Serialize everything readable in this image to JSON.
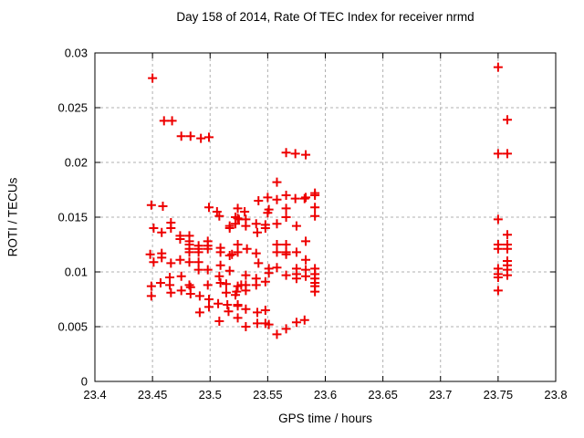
{
  "title": "Day 158 of 2014, Rate Of TEC Index for receiver nrmd",
  "colors": {
    "marker": "#ee0000",
    "grid": "#b0b0b0",
    "border": "#000000",
    "text": "#000000",
    "background": "#ffffff"
  },
  "chart_data": {
    "type": "scatter",
    "title": "Day 158 of 2014, Rate Of TEC Index for receiver nrmd",
    "xlabel": "GPS time / hours",
    "ylabel": "ROTI / TECUs",
    "xlim": [
      23.4,
      23.8
    ],
    "ylim": [
      0,
      0.03
    ],
    "x_ticks": [
      23.4,
      23.45,
      23.5,
      23.55,
      23.6,
      23.65,
      23.7,
      23.75,
      23.8
    ],
    "x_tick_labels": [
      "23.4",
      "23.45",
      "23.5",
      "23.55",
      "23.6",
      "23.65",
      "23.7",
      "23.75",
      "23.8"
    ],
    "y_ticks": [
      0,
      0.005,
      0.01,
      0.015,
      0.02,
      0.025,
      0.03
    ],
    "y_tick_labels": [
      "0",
      "0.005",
      "0.01",
      "0.015",
      "0.02",
      "0.025",
      "0.03"
    ],
    "grid": true,
    "legend": "none",
    "marker_shape": "plus",
    "series": [
      {
        "name": "ROTI",
        "points": [
          [
            23.45,
            0.0277
          ],
          [
            23.46,
            0.0238
          ],
          [
            23.467,
            0.0238
          ],
          [
            23.475,
            0.0224
          ],
          [
            23.483,
            0.0224
          ],
          [
            23.492,
            0.0222
          ],
          [
            23.499,
            0.0223
          ],
          [
            23.566,
            0.0209
          ],
          [
            23.574,
            0.0208
          ],
          [
            23.583,
            0.0207
          ],
          [
            23.449,
            0.0161
          ],
          [
            23.459,
            0.016
          ],
          [
            23.499,
            0.0159
          ],
          [
            23.506,
            0.0155
          ],
          [
            23.508,
            0.0151
          ],
          [
            23.524,
            0.0158
          ],
          [
            23.524,
            0.0149
          ],
          [
            23.53,
            0.0155
          ],
          [
            23.522,
            0.015
          ],
          [
            23.525,
            0.0148
          ],
          [
            23.531,
            0.0148
          ],
          [
            23.531,
            0.0142
          ],
          [
            23.54,
            0.0144
          ],
          [
            23.548,
            0.0143
          ],
          [
            23.548,
            0.014
          ],
          [
            23.541,
            0.0136
          ],
          [
            23.542,
            0.0165
          ],
          [
            23.55,
            0.0168
          ],
          [
            23.55,
            0.0154
          ],
          [
            23.551,
            0.0157
          ],
          [
            23.558,
            0.0182
          ],
          [
            23.558,
            0.0166
          ],
          [
            23.558,
            0.0144
          ],
          [
            23.566,
            0.017
          ],
          [
            23.566,
            0.0158
          ],
          [
            23.566,
            0.015
          ],
          [
            23.574,
            0.0167
          ],
          [
            23.582,
            0.0167
          ],
          [
            23.583,
            0.0168
          ],
          [
            23.591,
            0.0172
          ],
          [
            23.591,
            0.017
          ],
          [
            23.591,
            0.0159
          ],
          [
            23.591,
            0.0151
          ],
          [
            23.575,
            0.0142
          ],
          [
            23.451,
            0.014
          ],
          [
            23.458,
            0.0136
          ],
          [
            23.466,
            0.0145
          ],
          [
            23.466,
            0.014
          ],
          [
            23.474,
            0.0133
          ],
          [
            23.474,
            0.013
          ],
          [
            23.482,
            0.0133
          ],
          [
            23.482,
            0.0128
          ],
          [
            23.482,
            0.0125
          ],
          [
            23.482,
            0.0121
          ],
          [
            23.482,
            0.0118
          ],
          [
            23.49,
            0.0124
          ],
          [
            23.49,
            0.0121
          ],
          [
            23.49,
            0.0118
          ],
          [
            23.498,
            0.0128
          ],
          [
            23.498,
            0.0124
          ],
          [
            23.498,
            0.0121
          ],
          [
            23.509,
            0.0122
          ],
          [
            23.509,
            0.0118
          ],
          [
            23.517,
            0.0142
          ],
          [
            23.517,
            0.014
          ],
          [
            23.522,
            0.0144
          ],
          [
            23.524,
            0.0125
          ],
          [
            23.524,
            0.0118
          ],
          [
            23.532,
            0.0121
          ],
          [
            23.54,
            0.0117
          ],
          [
            23.542,
            0.0108
          ],
          [
            23.558,
            0.0125
          ],
          [
            23.558,
            0.0118
          ],
          [
            23.566,
            0.0125
          ],
          [
            23.566,
            0.0118
          ],
          [
            23.566,
            0.0116
          ],
          [
            23.575,
            0.0118
          ],
          [
            23.583,
            0.0128
          ],
          [
            23.583,
            0.0111
          ],
          [
            23.451,
            0.0109
          ],
          [
            23.458,
            0.0117
          ],
          [
            23.458,
            0.0113
          ],
          [
            23.448,
            0.0116
          ],
          [
            23.466,
            0.0108
          ],
          [
            23.474,
            0.0111
          ],
          [
            23.482,
            0.0109
          ],
          [
            23.49,
            0.0109
          ],
          [
            23.49,
            0.0102
          ],
          [
            23.498,
            0.0102
          ],
          [
            23.509,
            0.0106
          ],
          [
            23.517,
            0.0115
          ],
          [
            23.519,
            0.0116
          ],
          [
            23.517,
            0.0101
          ],
          [
            23.551,
            0.0103
          ],
          [
            23.551,
            0.0099
          ],
          [
            23.558,
            0.0104
          ],
          [
            23.566,
            0.0097
          ],
          [
            23.575,
            0.0103
          ],
          [
            23.575,
            0.0098
          ],
          [
            23.575,
            0.0094
          ],
          [
            23.583,
            0.0102
          ],
          [
            23.583,
            0.0096
          ],
          [
            23.591,
            0.0103
          ],
          [
            23.591,
            0.0098
          ],
          [
            23.591,
            0.0094
          ],
          [
            23.591,
            0.009
          ],
          [
            23.591,
            0.0087
          ],
          [
            23.591,
            0.0082
          ],
          [
            23.449,
            0.0087
          ],
          [
            23.449,
            0.0078
          ],
          [
            23.457,
            0.009
          ],
          [
            23.465,
            0.0095
          ],
          [
            23.465,
            0.0088
          ],
          [
            23.466,
            0.0081
          ],
          [
            23.475,
            0.0096
          ],
          [
            23.475,
            0.0083
          ],
          [
            23.483,
            0.0086
          ],
          [
            23.483,
            0.008
          ],
          [
            23.482,
            0.0088
          ],
          [
            23.491,
            0.0078
          ],
          [
            23.498,
            0.0088
          ],
          [
            23.499,
            0.0075
          ],
          [
            23.508,
            0.0096
          ],
          [
            23.509,
            0.009
          ],
          [
            23.514,
            0.0089
          ],
          [
            23.514,
            0.0081
          ],
          [
            23.522,
            0.0079
          ],
          [
            23.523,
            0.0082
          ],
          [
            23.524,
            0.0087
          ],
          [
            23.527,
            0.0088
          ],
          [
            23.531,
            0.0097
          ],
          [
            23.531,
            0.0088
          ],
          [
            23.531,
            0.0083
          ],
          [
            23.54,
            0.0094
          ],
          [
            23.54,
            0.0088
          ],
          [
            23.548,
            0.0091
          ],
          [
            23.499,
            0.0068
          ],
          [
            23.507,
            0.0071
          ],
          [
            23.515,
            0.007
          ],
          [
            23.524,
            0.007
          ],
          [
            23.491,
            0.0063
          ],
          [
            23.508,
            0.0055
          ],
          [
            23.516,
            0.0064
          ],
          [
            23.524,
            0.0058
          ],
          [
            23.524,
            0.0069
          ],
          [
            23.531,
            0.0066
          ],
          [
            23.541,
            0.0063
          ],
          [
            23.548,
            0.0065
          ],
          [
            23.531,
            0.005
          ],
          [
            23.541,
            0.0053
          ],
          [
            23.548,
            0.0053
          ],
          [
            23.551,
            0.0052
          ],
          [
            23.558,
            0.0043
          ],
          [
            23.566,
            0.0048
          ],
          [
            23.575,
            0.0054
          ],
          [
            23.582,
            0.0056
          ],
          [
            23.75,
            0.0287
          ],
          [
            23.758,
            0.0239
          ],
          [
            23.75,
            0.0208
          ],
          [
            23.758,
            0.0208
          ],
          [
            23.75,
            0.0148
          ],
          [
            23.758,
            0.0134
          ],
          [
            23.75,
            0.0125
          ],
          [
            23.758,
            0.0125
          ],
          [
            23.75,
            0.0121
          ],
          [
            23.758,
            0.0121
          ],
          [
            23.758,
            0.011
          ],
          [
            23.758,
            0.0106
          ],
          [
            23.75,
            0.0103
          ],
          [
            23.758,
            0.0102
          ],
          [
            23.75,
            0.0098
          ],
          [
            23.758,
            0.0097
          ],
          [
            23.75,
            0.0095
          ],
          [
            23.75,
            0.0083
          ]
        ]
      }
    ]
  }
}
